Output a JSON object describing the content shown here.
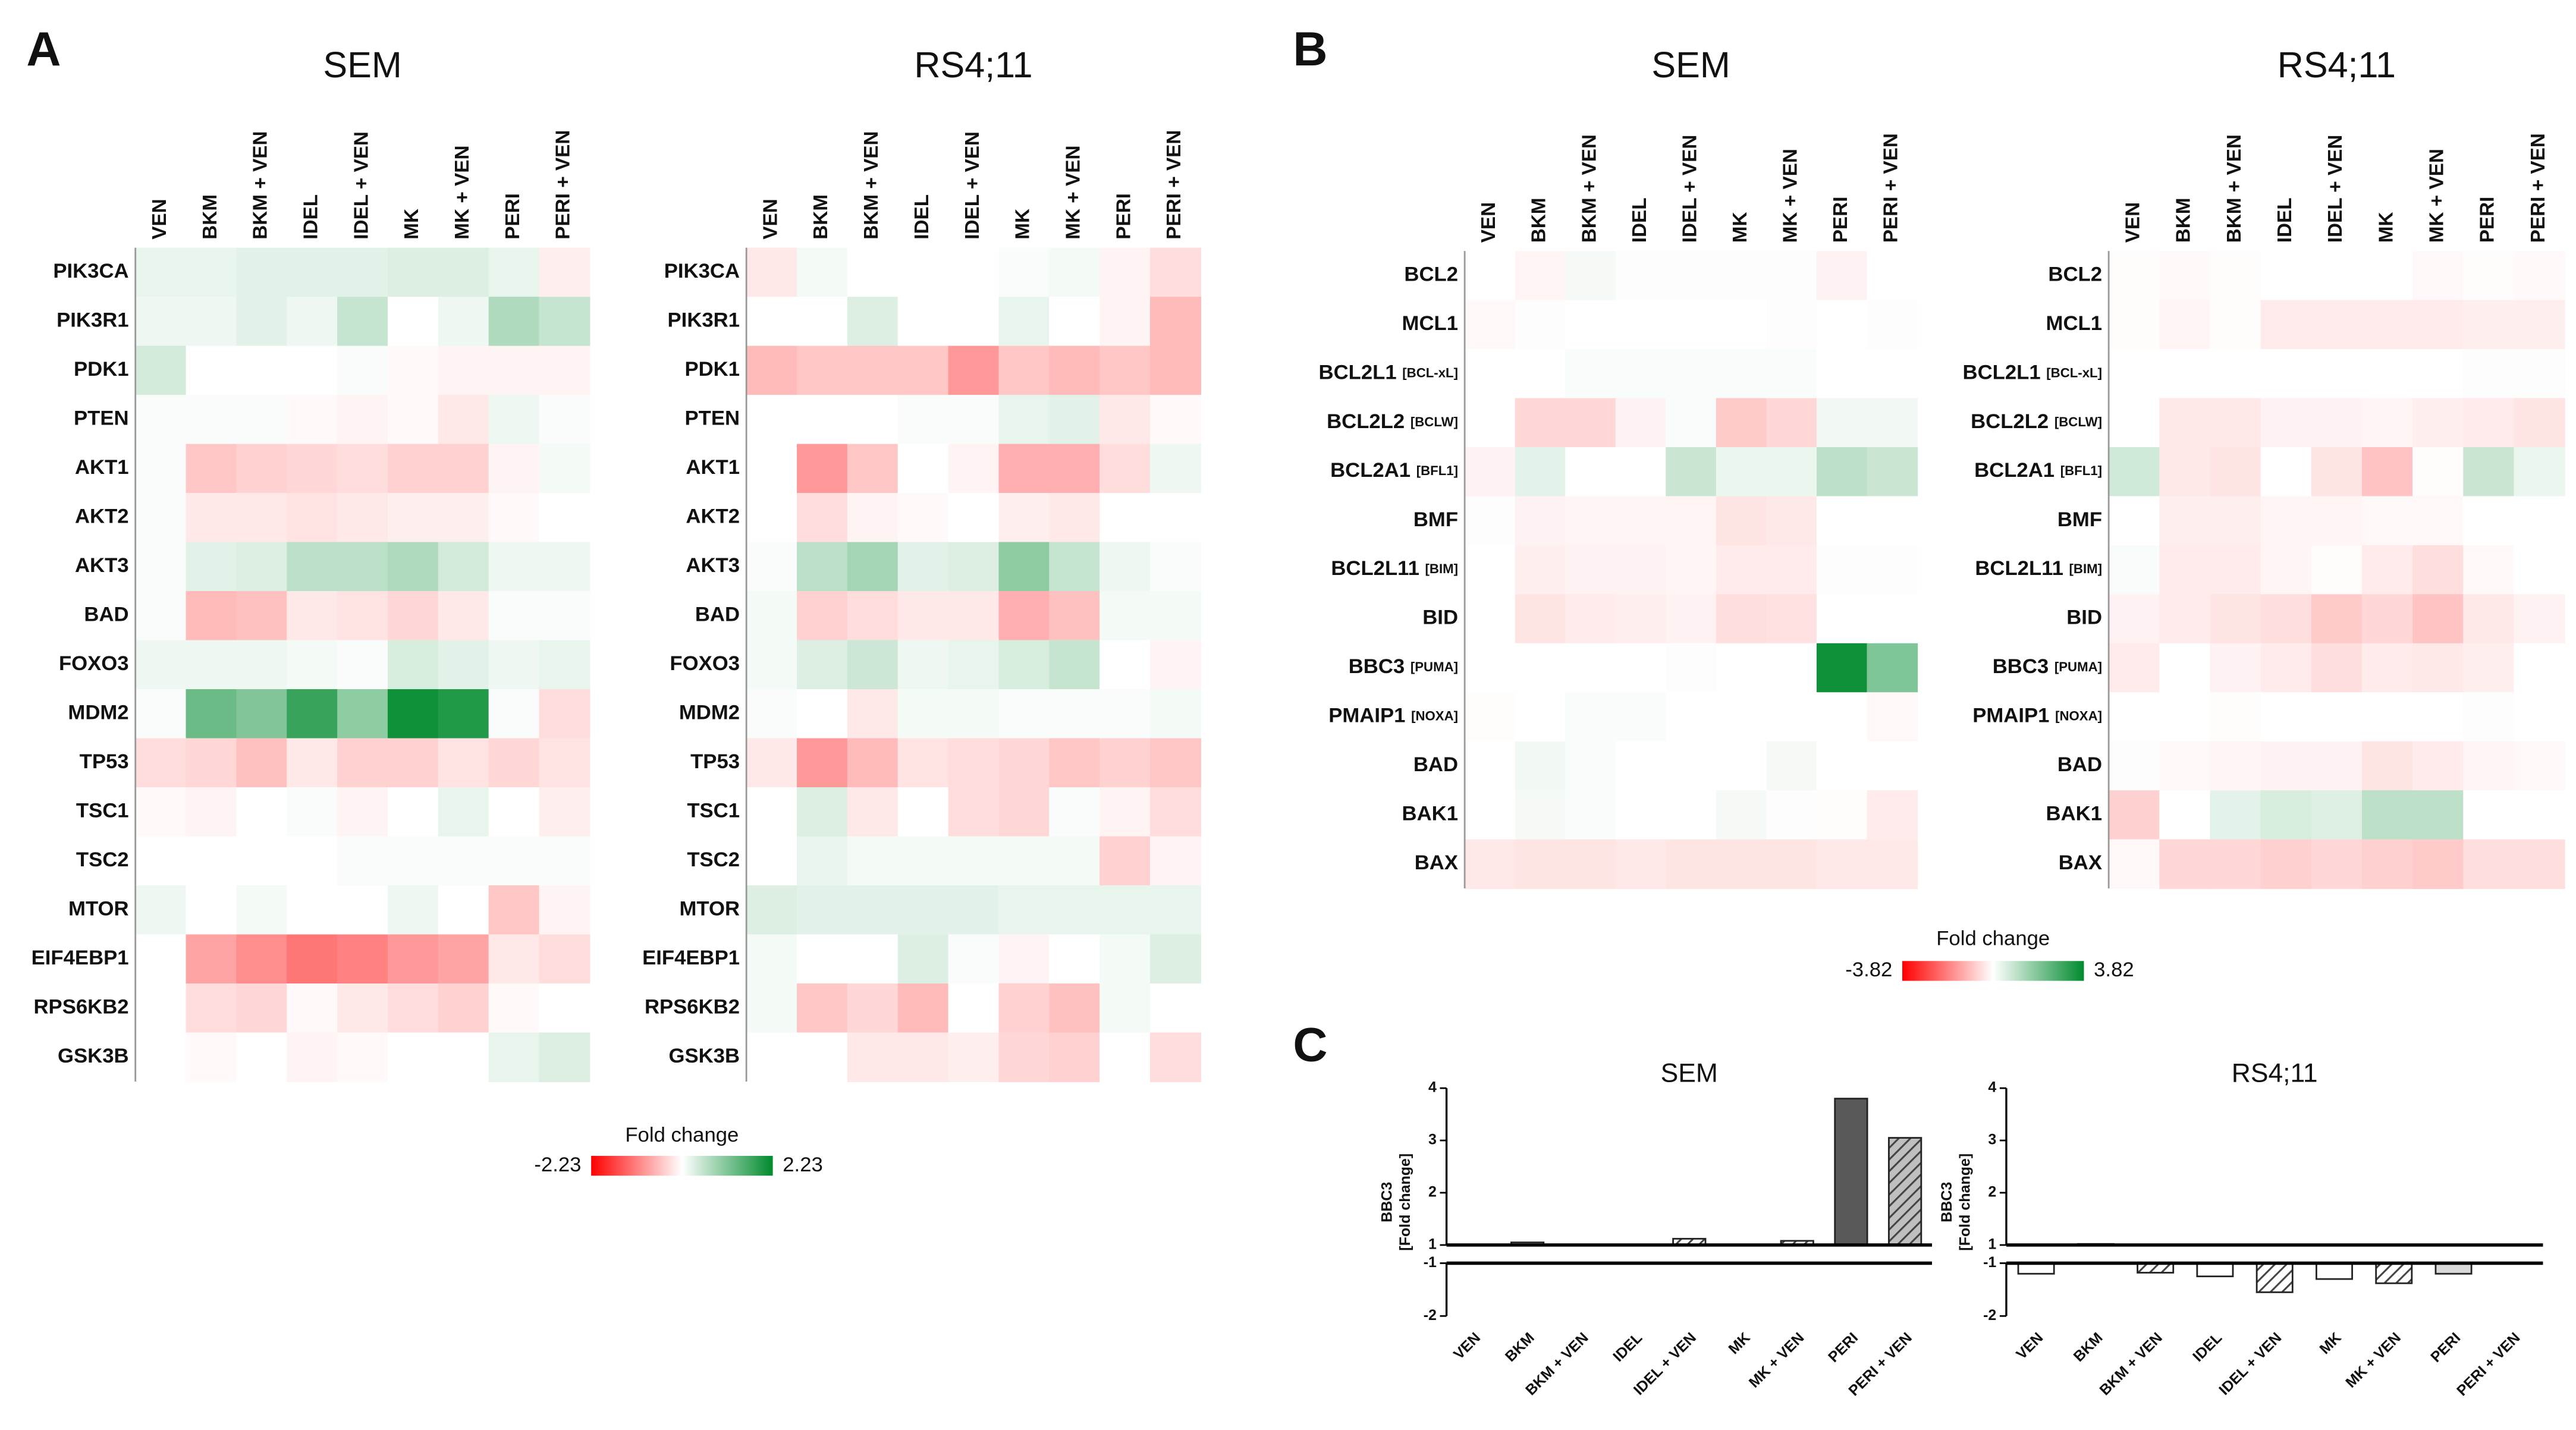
{
  "chart_data": [
    {
      "type": "heatmap",
      "panel": "A",
      "title": "SEM",
      "x": [
        "VEN",
        "BKM",
        "BKM + VEN",
        "IDEL",
        "IDEL + VEN",
        "MK",
        "MK + VEN",
        "PERI",
        "PERI + VEN"
      ],
      "y": [
        "PIK3CA",
        "PIK3R1",
        "PDK1",
        "PTEN",
        "AKT1",
        "AKT2",
        "AKT3",
        "BAD",
        "FOXO3",
        "MDM2",
        "TP53",
        "TSC1",
        "TSC2",
        "MTOR",
        "EIF4EBP1",
        "RPS6KB2",
        "GSK3B"
      ],
      "values": [
        [
          0.2,
          0.2,
          0.25,
          0.25,
          0.25,
          0.3,
          0.3,
          0.2,
          -0.15
        ],
        [
          0.15,
          0.15,
          0.25,
          0.15,
          0.5,
          0,
          0.15,
          0.7,
          0.5
        ],
        [
          0.4,
          0,
          0,
          0,
          0.05,
          -0.05,
          -0.1,
          -0.1,
          -0.1
        ],
        [
          0.05,
          0.05,
          0.05,
          -0.05,
          -0.1,
          -0.05,
          -0.2,
          0.15,
          0.05
        ],
        [
          0.05,
          -0.5,
          -0.4,
          -0.35,
          -0.3,
          -0.4,
          -0.4,
          -0.1,
          0.1
        ],
        [
          0.05,
          -0.2,
          -0.2,
          -0.25,
          -0.2,
          -0.15,
          -0.15,
          -0.05,
          0
        ],
        [
          0.05,
          0.25,
          0.3,
          0.6,
          0.6,
          0.7,
          0.4,
          0.15,
          0.15
        ],
        [
          0.05,
          -0.6,
          -0.55,
          -0.2,
          -0.25,
          -0.35,
          -0.2,
          0.05,
          0.05
        ],
        [
          0.15,
          0.15,
          0.15,
          0.1,
          0.05,
          0.35,
          0.25,
          0.15,
          0.2
        ],
        [
          0.05,
          1.3,
          1.1,
          1.75,
          1.0,
          2.1,
          1.95,
          0.05,
          -0.3
        ],
        [
          -0.3,
          -0.35,
          -0.55,
          -0.2,
          -0.4,
          -0.4,
          -0.25,
          -0.35,
          -0.25
        ],
        [
          -0.05,
          -0.1,
          0,
          0.05,
          -0.1,
          0,
          0.2,
          0,
          -0.15
        ],
        [
          0,
          0,
          0,
          0,
          0.05,
          0.05,
          0.05,
          0.05,
          0.05
        ],
        [
          0.15,
          0,
          0.1,
          0,
          0,
          0.15,
          0,
          -0.5,
          -0.1
        ],
        [
          0,
          -0.8,
          -1.0,
          -1.2,
          -1.1,
          -0.9,
          -0.8,
          -0.2,
          -0.3
        ],
        [
          0,
          -0.3,
          -0.35,
          -0.05,
          -0.2,
          -0.3,
          -0.4,
          -0.05,
          0
        ],
        [
          0,
          -0.05,
          0,
          -0.1,
          -0.05,
          0,
          0,
          0.2,
          0.3
        ]
      ]
    },
    {
      "type": "heatmap",
      "title": "RS4;11",
      "x": [
        "VEN",
        "BKM",
        "BKM + VEN",
        "IDEL",
        "IDEL + VEN",
        "MK",
        "MK + VEN",
        "PERI",
        "PERI + VEN"
      ],
      "y": [
        "PIK3CA",
        "PIK3R1",
        "PDK1",
        "PTEN",
        "AKT1",
        "AKT2",
        "AKT3",
        "BAD",
        "FOXO3",
        "MDM2",
        "TP53",
        "TSC1",
        "TSC2",
        "MTOR",
        "EIF4EBP1",
        "RPS6KB2",
        "GSK3B"
      ],
      "values": [
        [
          -0.2,
          0.1,
          0,
          0,
          0,
          0.05,
          0.1,
          -0.1,
          -0.3
        ],
        [
          0,
          0,
          0.3,
          0,
          0,
          0.2,
          0,
          -0.1,
          -0.6
        ],
        [
          -0.6,
          -0.5,
          -0.5,
          -0.5,
          -0.9,
          -0.5,
          -0.6,
          -0.5,
          -0.6
        ],
        [
          0,
          0,
          0,
          0.05,
          0.05,
          0.2,
          0.25,
          -0.2,
          -0.05
        ],
        [
          0,
          -0.9,
          -0.5,
          0,
          -0.1,
          -0.7,
          -0.7,
          -0.3,
          0.15
        ],
        [
          0,
          -0.3,
          -0.1,
          -0.05,
          0,
          -0.15,
          -0.2,
          0,
          0
        ],
        [
          0.05,
          0.6,
          0.8,
          0.25,
          0.3,
          1.0,
          0.5,
          0.15,
          0.05
        ],
        [
          0.1,
          -0.4,
          -0.3,
          -0.2,
          -0.2,
          -0.7,
          -0.55,
          0.1,
          0.1
        ],
        [
          0.1,
          0.3,
          0.45,
          0.15,
          0.2,
          0.35,
          0.5,
          0,
          -0.1
        ],
        [
          0.05,
          0,
          -0.2,
          0.1,
          0.1,
          0.05,
          0.05,
          0.05,
          0.1
        ],
        [
          -0.2,
          -0.9,
          -0.6,
          -0.25,
          -0.3,
          -0.35,
          -0.5,
          -0.4,
          -0.5
        ],
        [
          0,
          0.3,
          -0.2,
          0,
          -0.3,
          -0.35,
          0.05,
          -0.1,
          -0.3
        ],
        [
          0,
          0.2,
          0.1,
          0.1,
          0.1,
          0.1,
          0.1,
          -0.4,
          -0.1
        ],
        [
          0.3,
          0.25,
          0.25,
          0.25,
          0.25,
          0.2,
          0.2,
          0.2,
          0.2
        ],
        [
          0.1,
          0,
          0,
          0.3,
          0.05,
          -0.1,
          0,
          0.1,
          0.3
        ],
        [
          0.1,
          -0.5,
          -0.35,
          -0.6,
          0,
          -0.4,
          -0.55,
          0.1,
          0
        ],
        [
          0,
          0,
          -0.2,
          -0.2,
          -0.15,
          -0.35,
          -0.4,
          0,
          -0.3
        ]
      ]
    },
    {
      "type": "colorbar",
      "title": "Fold change",
      "zlim": [
        -2.23,
        2.23
      ],
      "colors": [
        "#ff0000",
        "#ffffff",
        "#008a2e"
      ]
    },
    {
      "type": "heatmap",
      "panel": "B",
      "title": "SEM",
      "x": [
        "VEN",
        "BKM",
        "BKM + VEN",
        "IDEL",
        "IDEL + VEN",
        "MK",
        "MK + VEN",
        "PERI",
        "PERI + VEN"
      ],
      "y": [
        "BCL2",
        "MCL1",
        "BCL2L1 [BCL-xL]",
        "BCL2L2 [BCLW]",
        "BCL2A1 [BFL1]",
        "BMF",
        "BCL2L11 [BIM]",
        "BID",
        "BBC3 [PUMA]",
        "PMAIP1 [NOXA]",
        "BAD",
        "BAK1",
        "BAX"
      ],
      "values": [
        [
          0,
          -0.15,
          0.15,
          0.05,
          0.05,
          0.05,
          0.05,
          -0.2,
          0
        ],
        [
          -0.1,
          0.05,
          0,
          0,
          0,
          0,
          0.05,
          0,
          0.05
        ],
        [
          0,
          0,
          0.1,
          0.1,
          0.1,
          0.1,
          0.1,
          0,
          0
        ],
        [
          0,
          -0.6,
          -0.6,
          -0.2,
          0.1,
          -0.8,
          -0.6,
          0.2,
          0.2
        ],
        [
          -0.2,
          0.4,
          0,
          0,
          0.8,
          0.3,
          0.3,
          1.0,
          0.8
        ],
        [
          0.05,
          -0.2,
          -0.15,
          -0.15,
          -0.15,
          -0.4,
          -0.35,
          0,
          0
        ],
        [
          0,
          -0.25,
          -0.2,
          -0.2,
          -0.15,
          -0.3,
          -0.3,
          0.05,
          0.05
        ],
        [
          0,
          -0.4,
          -0.3,
          -0.25,
          -0.2,
          -0.5,
          -0.45,
          0,
          0
        ],
        [
          0,
          0,
          0,
          0,
          0.05,
          0,
          0,
          3.6,
          1.9
        ],
        [
          -0.05,
          0,
          0.1,
          0.1,
          0,
          0,
          0,
          0,
          -0.1
        ],
        [
          0,
          0.2,
          0.1,
          0,
          0,
          0,
          0.15,
          0,
          0
        ],
        [
          0,
          0.15,
          0.1,
          0,
          0,
          0.15,
          0.05,
          -0.05,
          -0.3
        ],
        [
          -0.35,
          -0.4,
          -0.4,
          -0.35,
          -0.4,
          -0.4,
          -0.4,
          -0.35,
          -0.35
        ]
      ]
    },
    {
      "type": "heatmap",
      "title": "RS4;11",
      "x": [
        "VEN",
        "BKM",
        "BKM + VEN",
        "IDEL",
        "IDEL + VEN",
        "MK",
        "MK + VEN",
        "PERI",
        "PERI + VEN"
      ],
      "y": [
        "BCL2",
        "MCL1",
        "BCL2L1 [BCL-xL]",
        "BCL2L2 [BCLW]",
        "BCL2A1 [BFL1]",
        "BMF",
        "BCL2L11 [BIM]",
        "BID",
        "BBC3 [PUMA]",
        "PMAIP1 [NOXA]",
        "BAD",
        "BAK1",
        "BAX"
      ],
      "values": [
        [
          -0.05,
          -0.1,
          -0.05,
          0,
          0,
          0,
          -0.1,
          -0.05,
          -0.1
        ],
        [
          -0.05,
          -0.15,
          -0.05,
          -0.3,
          -0.3,
          -0.3,
          -0.3,
          -0.25,
          -0.25
        ],
        [
          0,
          0,
          0,
          0,
          0,
          0,
          0,
          0.05,
          0.05
        ],
        [
          0,
          -0.35,
          -0.35,
          -0.2,
          -0.2,
          -0.15,
          -0.25,
          -0.3,
          -0.4
        ],
        [
          0.7,
          -0.35,
          -0.4,
          0,
          -0.4,
          -0.9,
          -0.05,
          0.8,
          0.3
        ],
        [
          0,
          -0.25,
          -0.25,
          -0.15,
          -0.15,
          -0.1,
          -0.1,
          0,
          0
        ],
        [
          0.1,
          -0.3,
          -0.3,
          -0.15,
          -0.05,
          -0.3,
          -0.5,
          -0.1,
          0
        ],
        [
          -0.2,
          -0.3,
          -0.4,
          -0.5,
          -0.8,
          -0.6,
          -0.9,
          -0.35,
          -0.2
        ],
        [
          -0.3,
          0,
          -0.2,
          -0.3,
          -0.5,
          -0.3,
          -0.35,
          -0.25,
          0
        ],
        [
          0,
          0,
          -0.05,
          0,
          0,
          0,
          0,
          0.05,
          0
        ],
        [
          0.05,
          -0.1,
          -0.15,
          -0.2,
          -0.2,
          -0.4,
          -0.3,
          -0.15,
          -0.1
        ],
        [
          -0.7,
          0,
          0.4,
          0.6,
          0.5,
          1.0,
          1.0,
          0,
          0
        ],
        [
          -0.1,
          -0.6,
          -0.6,
          -0.7,
          -0.6,
          -0.7,
          -0.8,
          -0.5,
          -0.5
        ]
      ]
    },
    {
      "type": "colorbar",
      "title": "Fold change",
      "zlim": [
        -3.82,
        3.82
      ],
      "colors": [
        "#ff0000",
        "#ffffff",
        "#008a2e"
      ]
    },
    {
      "type": "bar",
      "panel": "C",
      "title": "SEM",
      "ylabel": [
        "BBC3",
        "[Fold change]"
      ],
      "categories": [
        "VEN",
        "BKM",
        "BKM + VEN",
        "IDEL",
        "IDEL + VEN",
        "MK",
        "MK + VEN",
        "PERI",
        "PERI + VEN"
      ],
      "values": [
        1.0,
        1.05,
        1.0,
        1.0,
        1.12,
        1.0,
        1.08,
        3.8,
        3.05
      ],
      "colors": [
        "#ffffff",
        "#ffffff",
        "#ffffff",
        "#ffffff",
        "#ffffff",
        "#ffffff",
        "#ffffff",
        "#595959",
        "#bfbfbf"
      ],
      "hatch": [
        false,
        false,
        true,
        false,
        true,
        false,
        true,
        false,
        true
      ],
      "ylim": [
        -2,
        4
      ],
      "ybreak": [
        -1,
        1
      ],
      "yticks": [
        4,
        3,
        2,
        1,
        -1,
        -2
      ]
    },
    {
      "type": "bar",
      "title": "RS4;11",
      "ylabel": [
        "BBC3",
        "[Fold change]"
      ],
      "categories": [
        "VEN",
        "BKM",
        "BKM + VEN",
        "IDEL",
        "IDEL + VEN",
        "MK",
        "MK + VEN",
        "PERI",
        "PERI + VEN"
      ],
      "values": [
        -1.2,
        1.02,
        -1.18,
        -1.25,
        -1.55,
        -1.3,
        -1.38,
        -1.2,
        1.0
      ],
      "colors": [
        "#ffffff",
        "#ffffff",
        "#ffffff",
        "#ffffff",
        "#ffffff",
        "#ffffff",
        "#ffffff",
        "#d9d9d9",
        "#ffffff"
      ],
      "hatch": [
        false,
        false,
        true,
        false,
        true,
        false,
        true,
        false,
        true
      ],
      "ylim": [
        -2,
        4
      ],
      "ybreak": [
        -1,
        1
      ],
      "yticks": [
        4,
        3,
        2,
        1,
        -1,
        -2
      ]
    }
  ]
}
